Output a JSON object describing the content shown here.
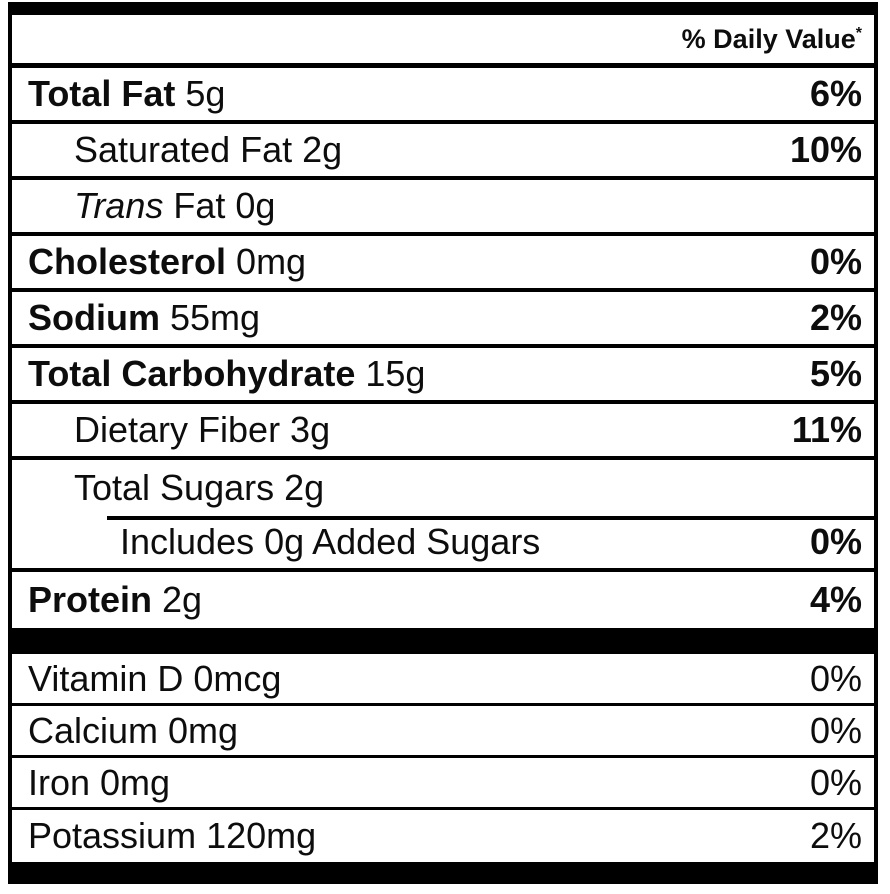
{
  "colors": {
    "rule": "#000000",
    "text": "#0d0d0d",
    "background": "#ffffff"
  },
  "header": {
    "daily_value_label": "% Daily Value",
    "daily_value_sup": "*"
  },
  "rows": [
    {
      "italic": "",
      "bold": "Total Fat",
      "regular": " 5g",
      "dv": "6%"
    },
    {
      "italic": "",
      "bold": "",
      "regular": "Saturated Fat 2g",
      "dv": "10%"
    },
    {
      "italic": "Trans",
      "bold": "",
      "regular": " Fat 0g",
      "dv": ""
    },
    {
      "italic": "",
      "bold": "Cholesterol",
      "regular": " 0mg",
      "dv": "0%"
    },
    {
      "italic": "",
      "bold": "Sodium",
      "regular": " 55mg",
      "dv": "2%"
    },
    {
      "italic": "",
      "bold": "Total Carbohydrate",
      "regular": " 15g",
      "dv": "5%"
    },
    {
      "italic": "",
      "bold": "",
      "regular": "Dietary Fiber 3g",
      "dv": "11%"
    },
    {
      "italic": "",
      "bold": "",
      "regular": "Total Sugars 2g",
      "dv": ""
    },
    {
      "italic": "",
      "bold": "",
      "regular": "Includes 0g Added Sugars",
      "dv": "0%"
    },
    {
      "italic": "",
      "bold": "Protein",
      "regular": " 2g",
      "dv": "4%"
    }
  ],
  "vitamin_rows": [
    {
      "regular": "Vitamin D 0mcg",
      "dv": "0%"
    },
    {
      "regular": "Calcium 0mg",
      "dv": "0%"
    },
    {
      "regular": "Iron 0mg",
      "dv": "0%"
    },
    {
      "regular": "Potassium 120mg",
      "dv": "2%"
    }
  ]
}
